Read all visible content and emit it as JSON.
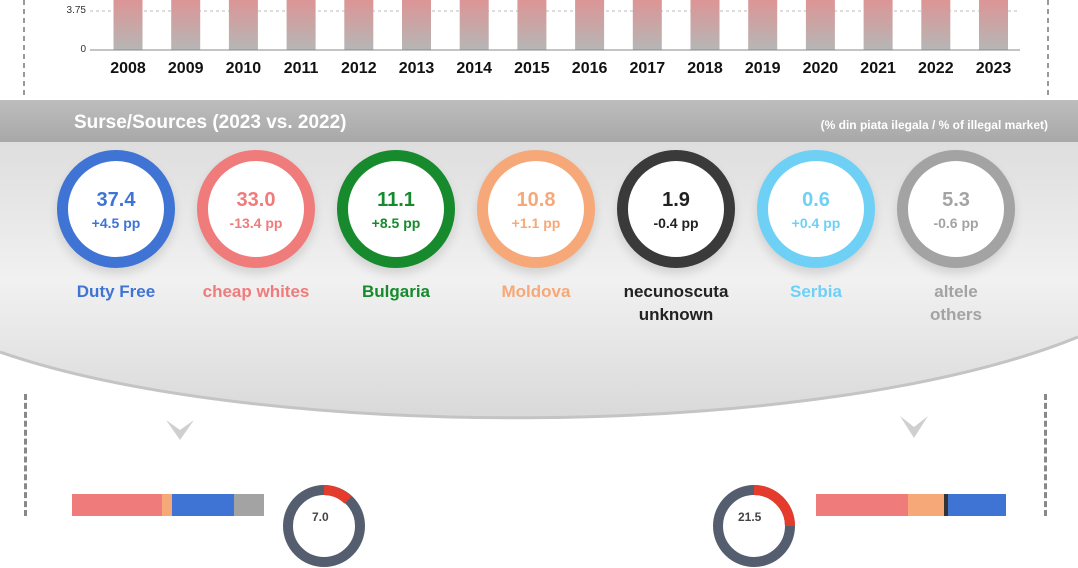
{
  "chart_data": [
    {
      "type": "bar",
      "categories": [
        "2008",
        "2009",
        "2010",
        "2011",
        "2012",
        "2013",
        "2014",
        "2015",
        "2016",
        "2017",
        "2018",
        "2019",
        "2020",
        "2021",
        "2022",
        "2023"
      ],
      "y_ticks": [
        "3.75",
        "0"
      ],
      "ylim": [
        0,
        5
      ],
      "values": [
        5,
        5,
        5,
        5,
        5,
        5,
        5,
        5,
        5,
        5,
        5,
        5,
        5,
        5,
        5,
        5
      ],
      "colors": {
        "bar_top": "#e98a8a",
        "bar_bottom": "#b6b6b6"
      }
    },
    {
      "type": "pie",
      "title": "Surse/Sources (2023 vs. 2022)",
      "unit_note": "(% din piata ilegala / % of illegal market)",
      "sources": [
        {
          "label_lines": [
            "Duty Free"
          ],
          "value": "37.4",
          "change": "+4.5 pp",
          "color": "#3f74d4"
        },
        {
          "label_lines": [
            "cheap whites"
          ],
          "value": "33.0",
          "change": "-13.4 pp",
          "color": "#f07b7b"
        },
        {
          "label_lines": [
            "Bulgaria"
          ],
          "value": "11.1",
          "change": "+8.5 pp",
          "color": "#168a2c"
        },
        {
          "label_lines": [
            "Moldova"
          ],
          "value": "10.8",
          "change": "+1.1 pp",
          "color": "#f6a878"
        },
        {
          "label_lines": [
            "necunoscuta",
            "unknown"
          ],
          "value": "1.9",
          "change": "-0.4 pp",
          "color": "#3a3a3a"
        },
        {
          "label_lines": [
            "Serbia"
          ],
          "value": "0.6",
          "change": "+0.4 pp",
          "color": "#6fd0f6"
        },
        {
          "label_lines": [
            "altele",
            "others"
          ],
          "value": "5.3",
          "change": "-0.6 pp",
          "color": "#a3a3a3"
        }
      ]
    }
  ],
  "bottom": {
    "left_donut_value": "7.0",
    "right_donut_value": "21.5",
    "colors": {
      "red": "#f07b7b",
      "orange": "#f6a878",
      "blue": "#3f74d4",
      "grey": "#a3a3a3",
      "dark": "#555e6e",
      "donut_red": "#e53b2c"
    }
  }
}
